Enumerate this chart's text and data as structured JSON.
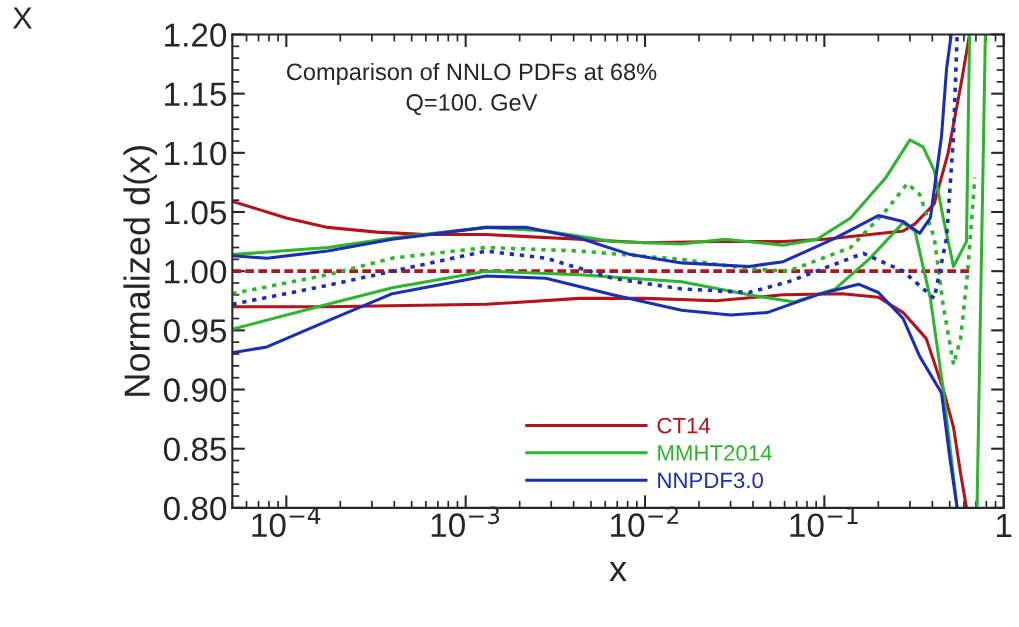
{
  "chart_data": {
    "type": "line",
    "title": "Comparison of NNLO PDFs at 68%\nQ=100. GeV",
    "xlabel": "x",
    "ylabel": "Normalized d(x)",
    "annotations": [
      "X"
    ],
    "log": "x",
    "xlim": [
      5e-05,
      1
    ],
    "ylim": [
      0.8,
      1.2
    ],
    "xticks": [
      {
        "value": 0.0001,
        "label": "10$^{−4}$"
      },
      {
        "value": 0.001,
        "label": "10$^{−3}$"
      },
      {
        "value": 0.01,
        "label": "10$^{−2}$"
      },
      {
        "value": 0.1,
        "label": "10$^{−1}$"
      },
      1
    ],
    "yticks": [
      {
        "value": 0.8,
        "label": "0.80"
      },
      {
        "value": 0.85,
        "label": "0.85"
      },
      {
        "value": 0.9,
        "label": "0.90"
      },
      {
        "value": 0.95,
        "label": "0.95"
      },
      {
        "value": 1.0,
        "label": "1.00"
      },
      {
        "value": 1.05,
        "label": "1.05"
      },
      {
        "value": 1.1,
        "label": "1.10"
      },
      {
        "value": 1.15,
        "label": "1.15"
      },
      {
        "value": 1.2,
        "label": "1.20"
      }
    ],
    "grid": false,
    "legend": "bottom",
    "series": [
      {
        "name": "CT14",
        "color": "#b5121b",
        "line_style": "solid",
        "x": [
          5e-05,
          0.0001,
          0.00017,
          0.00032,
          0.0006,
          0.0013,
          0.0043,
          0.01,
          0.025,
          0.059,
          0.1,
          0.18,
          0.275,
          0.32,
          0.41,
          0.49,
          0.575,
          0.645
        ],
        "values": [
          1.059,
          1.045,
          1.037,
          1.033,
          1.031,
          1.031,
          1.027,
          1.024,
          1.025,
          1.025,
          1.027,
          1.031,
          1.034,
          1.04,
          1.057,
          1.1,
          1.156,
          1.2
        ]
      },
      {
        "color": "#b5121b",
        "line_style": "solid",
        "x": [
          5e-05,
          0.00017,
          0.0013,
          0.0043,
          0.01,
          0.025,
          0.059,
          0.126,
          0.2,
          0.275,
          0.37,
          0.46,
          0.525,
          0.575,
          0.62
        ],
        "values": [
          0.97,
          0.97,
          0.972,
          0.977,
          0.977,
          0.975,
          0.98,
          0.981,
          0.978,
          0.965,
          0.943,
          0.9,
          0.868,
          0.829,
          0.8
        ]
      },
      {
        "color": "#b5121b",
        "line_style": "dashed",
        "x": [
          5e-05,
          0.67
        ],
        "values": [
          1.0,
          1.0
        ]
      },
      {
        "name": "MMHT2014",
        "color": "#2db52d",
        "line_style": "solid",
        "x": [
          5e-05,
          0.00017,
          0.00039,
          0.0013,
          0.0028,
          0.0066,
          0.016,
          0.028,
          0.059,
          0.091,
          0.14,
          0.22,
          0.3,
          0.355,
          0.41,
          0.46,
          0.525,
          0.62,
          0.645
        ],
        "values": [
          1.014,
          1.02,
          1.028,
          1.037,
          1.034,
          1.025,
          1.023,
          1.027,
          1.022,
          1.027,
          1.045,
          1.079,
          1.111,
          1.105,
          1.085,
          1.045,
          1.004,
          1.025,
          1.2
        ]
      },
      {
        "color": "#2db52d",
        "line_style": "solid",
        "x": [
          5e-05,
          0.00017,
          0.00039,
          0.0013,
          0.0043,
          0.016,
          0.038,
          0.068,
          0.115,
          0.18,
          0.275,
          0.32,
          0.39,
          0.46,
          0.55,
          0.6,
          0.71,
          0.79
        ],
        "values": [
          0.951,
          0.972,
          0.986,
          1.0,
          0.997,
          0.991,
          0.98,
          0.974,
          0.985,
          1.011,
          1.041,
          1.034,
          0.977,
          0.9,
          0.8,
          null,
          0.8,
          1.2
        ]
      },
      {
        "color": "#2db52d",
        "line_style": "dotted",
        "x": [
          5e-05,
          0.00017,
          0.00039,
          0.0013,
          0.0043,
          0.016,
          0.038,
          0.063,
          0.14,
          0.22,
          0.29,
          0.34,
          0.41,
          0.46,
          0.525,
          0.575,
          0.63,
          0.69
        ],
        "values": [
          0.981,
          0.997,
          1.011,
          1.02,
          1.017,
          1.01,
          1.002,
          1.0,
          1.02,
          1.051,
          1.074,
          1.065,
          1.028,
          0.971,
          0.921,
          0.943,
          1.0,
          1.079
        ]
      },
      {
        "name": "NNPDF3.0",
        "color": "#1b2fb5",
        "line_style": "solid",
        "x": [
          5e-05,
          7.8e-05,
          0.00017,
          0.00039,
          0.0013,
          0.0022,
          0.0043,
          0.0083,
          0.016,
          0.038,
          0.059,
          0.115,
          0.2,
          0.275,
          0.34,
          0.39,
          0.45,
          0.48,
          0.51
        ],
        "values": [
          1.013,
          1.011,
          1.017,
          1.027,
          1.037,
          1.037,
          1.028,
          1.014,
          1.007,
          1.004,
          1.008,
          1.028,
          1.047,
          1.042,
          1.032,
          1.045,
          1.114,
          1.171,
          1.2
        ]
      },
      {
        "color": "#1b2fb5",
        "line_style": "solid",
        "x": [
          5e-05,
          7.8e-05,
          0.00017,
          0.00039,
          0.0013,
          0.0028,
          0.0066,
          0.016,
          0.03,
          0.048,
          0.091,
          0.155,
          0.2,
          0.275,
          0.34,
          0.45,
          0.5,
          0.55
        ],
        "values": [
          0.931,
          0.936,
          0.958,
          0.981,
          0.996,
          0.994,
          0.98,
          0.967,
          0.963,
          0.965,
          0.98,
          0.989,
          0.982,
          0.96,
          0.928,
          0.897,
          0.843,
          0.8
        ]
      },
      {
        "color": "#1b2fb5",
        "line_style": "dotted",
        "x": [
          5e-05,
          0.00017,
          0.00039,
          0.0013,
          0.0028,
          0.0066,
          0.016,
          0.038,
          0.063,
          0.14,
          0.165,
          0.275,
          0.41,
          0.48,
          0.525,
          0.55
        ],
        "values": [
          0.972,
          0.988,
          1.0,
          1.017,
          1.011,
          0.994,
          0.985,
          0.982,
          0.991,
          1.011,
          1.015,
          1.0,
          0.977,
          1.028,
          1.114,
          1.2
        ]
      }
    ]
  }
}
